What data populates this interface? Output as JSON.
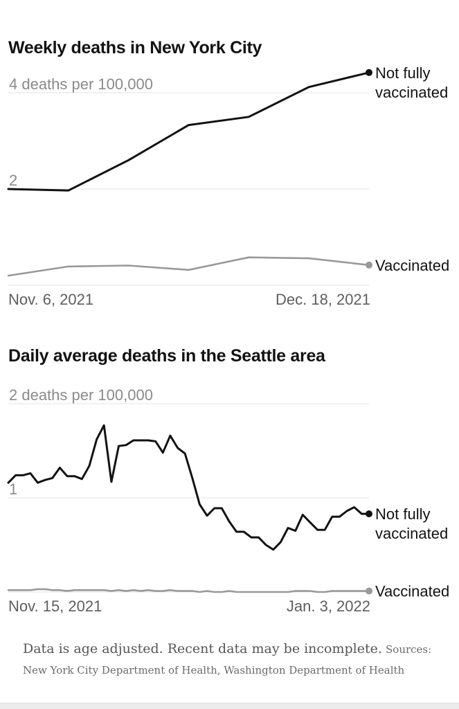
{
  "chart_data": [
    {
      "type": "line",
      "title": "Weekly deaths in New York City",
      "y_axis_label": "deaths per 100,000",
      "yticks": [
        {
          "value": 4,
          "label": "4 deaths per 100,000"
        },
        {
          "value": 2,
          "label": "2"
        },
        {
          "value": 0,
          "label": ""
        }
      ],
      "ylim": [
        0,
        4
      ],
      "x_tick_labels": [
        "Nov. 6, 2021",
        "Dec. 18, 2021"
      ],
      "x": [
        "2021-11-06",
        "2021-11-13",
        "2021-11-20",
        "2021-11-27",
        "2021-12-04",
        "2021-12-11",
        "2021-12-18"
      ],
      "series": [
        {
          "name": "Not fully vaccinated",
          "color": "#121212",
          "values": [
            2.0,
            1.97,
            2.6,
            3.33,
            3.5,
            4.12,
            4.42
          ]
        },
        {
          "name": "Vaccinated",
          "color": "#999999",
          "values": [
            0.2,
            0.39,
            0.41,
            0.32,
            0.58,
            0.56,
            0.42
          ]
        }
      ],
      "grid": true
    },
    {
      "type": "line",
      "title": "Daily average deaths in the Seattle area",
      "y_axis_label": "deaths per 100,000",
      "yticks": [
        {
          "value": 2,
          "label": "2 deaths per 100,000"
        },
        {
          "value": 1,
          "label": "1"
        },
        {
          "value": 0,
          "label": ""
        }
      ],
      "ylim": [
        0,
        2
      ],
      "x_tick_labels": [
        "Nov. 15, 2021",
        "Jan. 3, 2022"
      ],
      "x_start": "2021-11-15",
      "x_end": "2022-01-03",
      "series": [
        {
          "name": "Not fully vaccinated",
          "color": "#121212",
          "values": [
            1.16,
            1.24,
            1.24,
            1.26,
            1.16,
            1.19,
            1.21,
            1.32,
            1.23,
            1.23,
            1.2,
            1.34,
            1.62,
            1.77,
            1.17,
            1.55,
            1.56,
            1.61,
            1.61,
            1.61,
            1.6,
            1.48,
            1.66,
            1.53,
            1.47,
            1.21,
            0.93,
            0.81,
            0.89,
            0.89,
            0.75,
            0.64,
            0.64,
            0.58,
            0.58,
            0.5,
            0.45,
            0.53,
            0.68,
            0.65,
            0.82,
            0.74,
            0.66,
            0.66,
            0.8,
            0.8,
            0.86,
            0.9,
            0.83,
            0.83
          ]
        },
        {
          "name": "Vaccinated",
          "color": "#999999",
          "values": [
            0.02,
            0.02,
            0.02,
            0.02,
            0.03,
            0.03,
            0.02,
            0.02,
            0.01,
            0.02,
            0.02,
            0.02,
            0.02,
            0.02,
            0.01,
            0.02,
            0.01,
            0.02,
            0.01,
            0.02,
            0.01,
            0.01,
            0.02,
            0.01,
            0.01,
            0.01,
            0.0,
            0.01,
            0.0,
            0.0,
            0.01,
            0.0,
            0.0,
            0.0,
            0.0,
            0.0,
            0.0,
            0.0,
            0.0,
            0.01,
            0.01,
            0.01,
            0.0,
            0.0,
            0.01,
            0.01,
            0.01,
            0.01,
            0.01,
            0.01
          ]
        }
      ],
      "grid": true
    }
  ],
  "footer": {
    "note": "Data is age adjusted. Recent data may be incomplete.",
    "sources": "Sources: New York City Department of Health, Washington Department of Health"
  }
}
